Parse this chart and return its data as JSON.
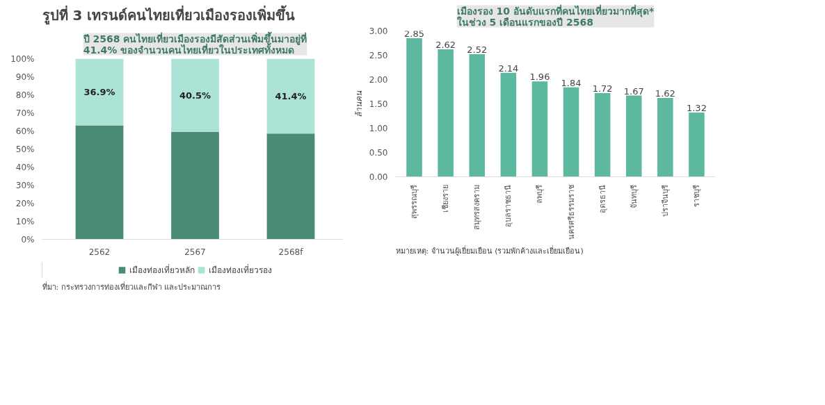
{
  "chart_data": [
    {
      "type": "bar",
      "stacked": true,
      "title": "รูปที่ 3 เทรนด์คนไทยเที่ยวเมืองรองเพิ่มขึ้น",
      "subtitle": "ปี 2568 คนไทยเที่ยวเมืองรองมีสัดส่วนเพิ่มขึ้นมาอยู่ที่\n41.4% ของจำนวนคนไทยเที่ยวในประเทศทั้งหมด",
      "categories": [
        "2562",
        "2567",
        "2568f"
      ],
      "series": [
        {
          "name": "เมืองท่องเที่ยวหลัก",
          "color": "#4a8b76",
          "values": [
            63.1,
            59.5,
            58.6
          ]
        },
        {
          "name": "เมืองท่องเที่ยวรอง",
          "color": "#ace3d7",
          "values": [
            36.9,
            40.5,
            41.4
          ],
          "value_labels": [
            "36.9%",
            "40.5%",
            "41.4%"
          ]
        }
      ],
      "ylim": [
        0,
        100
      ],
      "yticks": [
        {
          "value": 0,
          "label": "0%"
        },
        {
          "value": 10,
          "label": "10%"
        },
        {
          "value": 20,
          "label": "20%"
        },
        {
          "value": 30,
          "label": "30%"
        },
        {
          "value": 40,
          "label": "40%"
        },
        {
          "value": 50,
          "label": "50%"
        },
        {
          "value": 60,
          "label": "60%"
        },
        {
          "value": 70,
          "label": "70%"
        },
        {
          "value": 80,
          "label": "80%"
        },
        {
          "value": 90,
          "label": "90%"
        },
        {
          "value": 100,
          "label": "100%"
        }
      ],
      "legend": "bottom",
      "annotations": [
        "ที่มา: กระทรวงการท่องเที่ยวและกีฬา และประมาณการ"
      ]
    },
    {
      "type": "bar",
      "title": "เมืองรอง 10 อันดับแรกที่คนไทยเที่ยวมากที่สุด*\nในช่วง 5 เดือนแรกของปี 2568",
      "ylabel": "ล้านคน",
      "categories": [
        "สุพรรณบุรี",
        "เชียงราย",
        "สมุทรสงคราม",
        "อุบลราชธานี",
        "ลพบุรี",
        "นครศรีธรรมราช",
        "อุดรธานี",
        "จันทบุรี",
        "ปราจีนบุรี",
        "ราชบุรี"
      ],
      "values": [
        2.85,
        2.62,
        2.52,
        2.14,
        1.96,
        1.84,
        1.72,
        1.67,
        1.62,
        1.32
      ],
      "color": "#5db8a0",
      "data_labels": true,
      "ylim": [
        0,
        3.0
      ],
      "yticks": [
        {
          "value": 0,
          "label": "0.00"
        },
        {
          "value": 0.5,
          "label": "0.50"
        },
        {
          "value": 1,
          "label": "1.00"
        },
        {
          "value": 1.5,
          "label": "1.50"
        },
        {
          "value": 2,
          "label": "2.00"
        },
        {
          "value": 2.5,
          "label": "2.50"
        },
        {
          "value": 3,
          "label": "3.00"
        }
      ],
      "annotations": [
        "หมายเหตุ: จำนวนผู้เยี่ยมเยือน (รวมพักค้างและเยี่ยมเยือน)"
      ]
    }
  ]
}
